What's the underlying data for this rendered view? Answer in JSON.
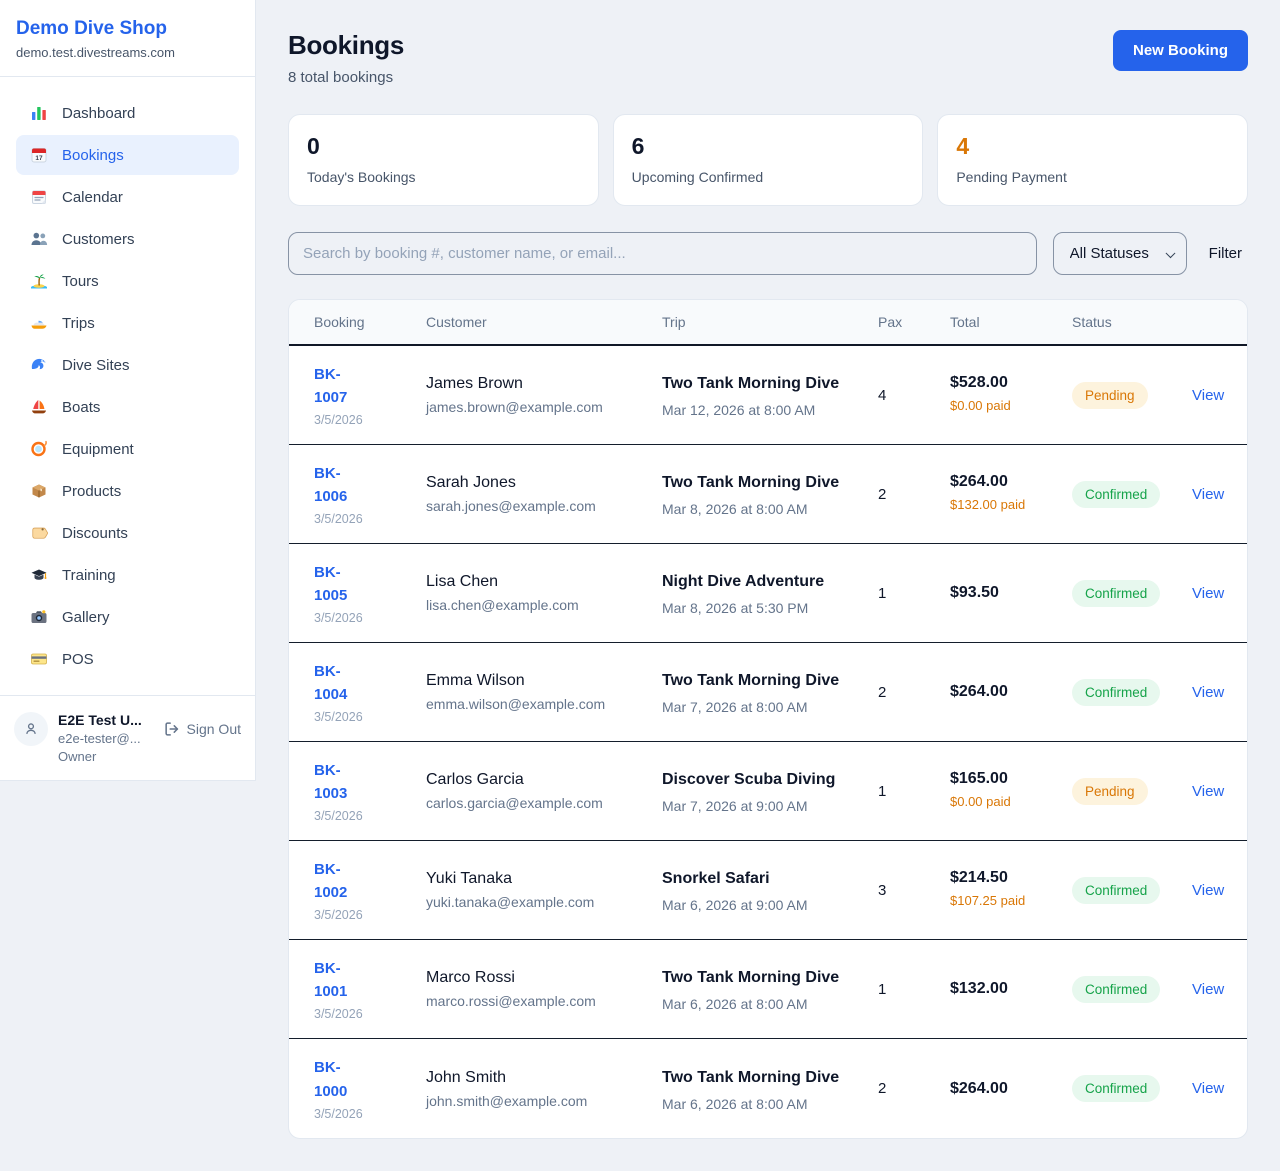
{
  "sidebar": {
    "shop_name": "Demo Dive Shop",
    "shop_domain": "demo.test.divestreams.com",
    "items": [
      {
        "label": "Dashboard",
        "icon": "bar-chart",
        "active": false
      },
      {
        "label": "Bookings",
        "icon": "calendar-date",
        "active": true
      },
      {
        "label": "Calendar",
        "icon": "calendar",
        "active": false
      },
      {
        "label": "Customers",
        "icon": "people",
        "active": false
      },
      {
        "label": "Tours",
        "icon": "island",
        "active": false
      },
      {
        "label": "Trips",
        "icon": "speedboat",
        "active": false
      },
      {
        "label": "Dive Sites",
        "icon": "wave",
        "active": false
      },
      {
        "label": "Boats",
        "icon": "sailboat",
        "active": false
      },
      {
        "label": "Equipment",
        "icon": "diving-mask",
        "active": false
      },
      {
        "label": "Products",
        "icon": "package",
        "active": false
      },
      {
        "label": "Discounts",
        "icon": "tag",
        "active": false
      },
      {
        "label": "Training",
        "icon": "graduation-cap",
        "active": false
      },
      {
        "label": "Gallery",
        "icon": "camera",
        "active": false
      },
      {
        "label": "POS",
        "icon": "credit-card",
        "active": false
      }
    ],
    "user": {
      "name": "E2E Test U...",
      "email": "e2e-tester@...",
      "role": "Owner",
      "sign_out_label": "Sign Out"
    }
  },
  "header": {
    "title": "Bookings",
    "subtitle": "8 total bookings",
    "new_booking_label": "New Booking"
  },
  "stats": [
    {
      "value": "0",
      "label": "Today's Bookings",
      "value_color": "#0f172a"
    },
    {
      "value": "6",
      "label": "Upcoming Confirmed",
      "value_color": "#0f172a"
    },
    {
      "value": "4",
      "label": "Pending Payment",
      "value_color": "#d97706"
    }
  ],
  "filters": {
    "search_placeholder": "Search by booking #, customer name, or email...",
    "search_value": "",
    "status_selected": "All Statuses",
    "filter_label": "Filter"
  },
  "table": {
    "columns": [
      "Booking",
      "Customer",
      "Trip",
      "Pax",
      "Total",
      "Status"
    ],
    "rows": [
      {
        "id": "BK-1007",
        "date": "3/5/2026",
        "customer": "James Brown",
        "email": "james.brown@example.com",
        "trip": "Two Tank Morning Dive",
        "trip_datetime": "Mar 12, 2026 at 8:00 AM",
        "pax": "4",
        "total": "$528.00",
        "paid": "$0.00 paid",
        "status": "Pending",
        "action": "View"
      },
      {
        "id": "BK-1006",
        "date": "3/5/2026",
        "customer": "Sarah Jones",
        "email": "sarah.jones@example.com",
        "trip": "Two Tank Morning Dive",
        "trip_datetime": "Mar 8, 2026 at 8:00 AM",
        "pax": "2",
        "total": "$264.00",
        "paid": "$132.00 paid",
        "status": "Confirmed",
        "action": "View"
      },
      {
        "id": "BK-1005",
        "date": "3/5/2026",
        "customer": "Lisa Chen",
        "email": "lisa.chen@example.com",
        "trip": "Night Dive Adventure",
        "trip_datetime": "Mar 8, 2026 at 5:30 PM",
        "pax": "1",
        "total": "$93.50",
        "paid": null,
        "status": "Confirmed",
        "action": "View"
      },
      {
        "id": "BK-1004",
        "date": "3/5/2026",
        "customer": "Emma Wilson",
        "email": "emma.wilson@example.com",
        "trip": "Two Tank Morning Dive",
        "trip_datetime": "Mar 7, 2026 at 8:00 AM",
        "pax": "2",
        "total": "$264.00",
        "paid": null,
        "status": "Confirmed",
        "action": "View"
      },
      {
        "id": "BK-1003",
        "date": "3/5/2026",
        "customer": "Carlos Garcia",
        "email": "carlos.garcia@example.com",
        "trip": "Discover Scuba Diving",
        "trip_datetime": "Mar 7, 2026 at 9:00 AM",
        "pax": "1",
        "total": "$165.00",
        "paid": "$0.00 paid",
        "status": "Pending",
        "action": "View"
      },
      {
        "id": "BK-1002",
        "date": "3/5/2026",
        "customer": "Yuki Tanaka",
        "email": "yuki.tanaka@example.com",
        "trip": "Snorkel Safari",
        "trip_datetime": "Mar 6, 2026 at 9:00 AM",
        "pax": "3",
        "total": "$214.50",
        "paid": "$107.25 paid",
        "status": "Confirmed",
        "action": "View"
      },
      {
        "id": "BK-1001",
        "date": "3/5/2026",
        "customer": "Marco Rossi",
        "email": "marco.rossi@example.com",
        "trip": "Two Tank Morning Dive",
        "trip_datetime": "Mar 6, 2026 at 8:00 AM",
        "pax": "1",
        "total": "$132.00",
        "paid": null,
        "status": "Confirmed",
        "action": "View"
      },
      {
        "id": "BK-1000",
        "date": "3/5/2026",
        "customer": "John Smith",
        "email": "john.smith@example.com",
        "trip": "Two Tank Morning Dive",
        "trip_datetime": "Mar 6, 2026 at 8:00 AM",
        "pax": "2",
        "total": "$264.00",
        "paid": null,
        "status": "Confirmed",
        "action": "View"
      }
    ]
  },
  "colors": {
    "accent": "#2563eb",
    "pending_text": "#d97706",
    "pending_bg": "#fdf3dd",
    "confirmed_text": "#16a34a",
    "confirmed_bg": "#e7f8ee",
    "paid_orange": "#d97706"
  }
}
